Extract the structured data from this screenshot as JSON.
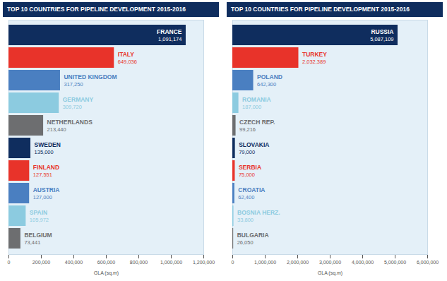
{
  "chart_data": [
    {
      "type": "bar",
      "orientation": "horizontal",
      "data_labels": true,
      "tick_labels": "x",
      "title": "TOP 10 COUNTRIES FOR PIPELINE DEVELOPMENT 2015-2016",
      "xlabel": "GLA (sq.m)",
      "categories": [
        "FRANCE",
        "ITALY",
        "UNITED KINGDOM",
        "GERMANY",
        "NETHERLANDS",
        "SWEDEN",
        "FINLAND",
        "AUSTRIA",
        "SPAIN",
        "BELGIUM"
      ],
      "values": [
        1091174,
        649036,
        317250,
        309720,
        213440,
        135000,
        127551,
        127000,
        105972,
        73441
      ],
      "value_labels": [
        "1,091,174",
        "649,036",
        "317,250",
        "309,720",
        "213,440",
        "135,000",
        "127,551",
        "127,000",
        "105,972",
        "73,441"
      ],
      "colors": [
        "#0f2d5e",
        "#e8332a",
        "#4a7fc1",
        "#8ccbe0",
        "#6d6e70",
        "#0f2d5e",
        "#e8332a",
        "#4a7fc1",
        "#8ccbe0",
        "#6d6e70"
      ],
      "xlim": [
        0,
        1200000
      ],
      "xticks": [
        0,
        {
          "value": 200000,
          "label": "200,000"
        },
        {
          "value": 400000,
          "label": "400,000"
        },
        {
          "value": 600000,
          "label": "600,000"
        },
        {
          "value": 800000,
          "label": "800,000"
        },
        {
          "value": 1000000,
          "label": "1,000,000"
        },
        {
          "value": 1200000,
          "label": "1,200,000"
        }
      ]
    },
    {
      "type": "bar",
      "orientation": "horizontal",
      "data_labels": true,
      "tick_labels": "x",
      "title": "TOP 10 COUNTRIES FOR PIPELINE DEVELOPMENT 2015-2016",
      "xlabel": "GLA (sq.m)",
      "categories": [
        "RUSSIA",
        "TURKEY",
        "POLAND",
        "ROMANIA",
        "CZECH REP.",
        "SLOVAKIA",
        "SERBIA",
        "CROATIA",
        "BOSNIA HERZ.",
        "BULGARIA"
      ],
      "values": [
        5087109,
        2032389,
        642300,
        187000,
        99216,
        79000,
        75000,
        62400,
        33800,
        26050
      ],
      "value_labels": [
        "5,087,109",
        "2,032,389",
        "642,300",
        "187,000",
        "99,216",
        "79,000",
        "75,000",
        "62,400",
        "33,800",
        "26,050"
      ],
      "colors": [
        "#0f2d5e",
        "#e8332a",
        "#4a7fc1",
        "#8ccbe0",
        "#6d6e70",
        "#0f2d5e",
        "#e8332a",
        "#4a7fc1",
        "#8ccbe0",
        "#6d6e70"
      ],
      "xlim": [
        0,
        6000000
      ],
      "xticks": [
        0,
        {
          "value": 1000000,
          "label": "1,000,000"
        },
        {
          "value": 2000000,
          "label": "2,000,000"
        },
        {
          "value": 3000000,
          "label": "3,000,000"
        },
        {
          "value": 4000000,
          "label": "4,000,000"
        },
        {
          "value": 5000000,
          "label": "5,000,000"
        },
        {
          "value": 6000000,
          "label": "6,000,000"
        }
      ]
    }
  ]
}
